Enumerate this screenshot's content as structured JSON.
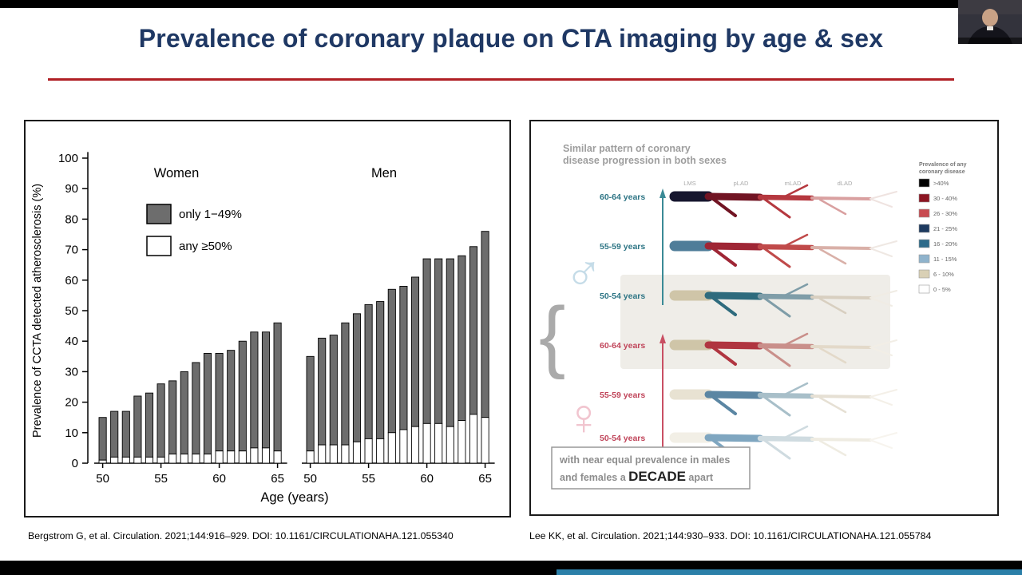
{
  "slide": {
    "title": "Prevalence of coronary plaque on CTA imaging by age & sex",
    "title_color": "#1F3864",
    "rule_color": "#B01F24",
    "footer_strip_color": "#2B7FA8"
  },
  "citations": {
    "left": "Bergstrom G, et al. Circulation. 2021;144:916–929. DOI: 10.1161/CIRCULATIONAHA.121.055340",
    "right": "Lee KK, et al. Circulation. 2021;144:930–933. DOI: 10.1161/CIRCULATIONAHA.121.055784"
  },
  "chart_data": [
    {
      "type": "bar",
      "stacked": true,
      "title": "",
      "xlabel": "Age (years)",
      "ylabel": "Prevalence of CCTA detected atherosclerosis (%)",
      "ylim": [
        0,
        100
      ],
      "yticks": [
        0,
        10,
        20,
        30,
        40,
        50,
        60,
        70,
        80,
        90,
        100
      ],
      "bar_fill": "#6d6d6d",
      "legend": [
        {
          "label": "only 1−49%",
          "fill": "#6d6d6d"
        },
        {
          "label": "any ≥50%",
          "fill": "#ffffff"
        }
      ],
      "groups": [
        {
          "label": "Women",
          "age_start": 50,
          "xticks": [
            50,
            55,
            60,
            65
          ],
          "total": [
            15,
            17,
            17,
            22,
            23,
            26,
            27,
            30,
            33,
            36,
            36,
            37,
            40,
            43,
            43,
            46
          ],
          "ge50": [
            1,
            2,
            2,
            2,
            2,
            2,
            3,
            3,
            3,
            3,
            4,
            4,
            4,
            5,
            5,
            4
          ]
        },
        {
          "label": "Men",
          "age_start": 50,
          "xticks": [
            50,
            55,
            60,
            65
          ],
          "total": [
            35,
            41,
            42,
            46,
            49,
            52,
            53,
            57,
            58,
            61,
            67,
            67,
            67,
            68,
            71,
            76
          ],
          "ge50": [
            4,
            6,
            6,
            6,
            7,
            8,
            8,
            10,
            11,
            12,
            13,
            13,
            12,
            14,
            16,
            15
          ]
        }
      ]
    },
    {
      "type": "diagram",
      "title_lines": [
        "Similar pattern of coronary",
        "disease progression in both sexes"
      ],
      "columns": [
        "LMS",
        "pLAD",
        "mLAD",
        "dLAD"
      ],
      "male_symbol": "♂",
      "female_symbol": "♀",
      "arrow_colors": {
        "male": "#3A8A96",
        "female": "#C94F63"
      },
      "rows": [
        {
          "group": "male",
          "age": "60-64 years",
          "label_color": "#2E7585",
          "colors": [
            "#16162E",
            "#711423",
            "#B5383F",
            "#D9A0A0",
            "#EFE3E0"
          ]
        },
        {
          "group": "male",
          "age": "55-59 years",
          "label_color": "#2E7585",
          "colors": [
            "#4F7D99",
            "#9F2635",
            "#C04A4A",
            "#D9B0A8",
            "#EFE8E3"
          ]
        },
        {
          "group": "male",
          "age": "50-54 years",
          "label_color": "#2E7585",
          "colors": [
            "#CFC5A8",
            "#2E6B7D",
            "#7F9DA8",
            "#D8CFC0",
            "#F0ECE4"
          ]
        },
        {
          "group": "female",
          "age": "60-64 years",
          "label_color": "#C0455A",
          "colors": [
            "#CFC5A8",
            "#B03540",
            "#C98F8A",
            "#E3D9C9",
            "#F2EEE6"
          ]
        },
        {
          "group": "female",
          "age": "55-59 years",
          "label_color": "#C0455A",
          "colors": [
            "#E8E2D2",
            "#5B86A3",
            "#A8BFC9",
            "#E6E0D4",
            "#F4F0E8"
          ]
        },
        {
          "group": "female",
          "age": "50-54 years",
          "label_color": "#C0455A",
          "colors": [
            "#F2EFE6",
            "#7FA6C0",
            "#CFDBE0",
            "#EFECE2",
            "#F7F4EE"
          ]
        }
      ],
      "legend": {
        "title_lines": [
          "Prevalence of any",
          "coronary disease"
        ],
        "bins": [
          {
            "label": ">40%",
            "color": "#000000"
          },
          {
            "label": "30 - 40%",
            "color": "#8C1522"
          },
          {
            "label": "26 - 30%",
            "color": "#C84A50"
          },
          {
            "label": "21 - 25%",
            "color": "#1D3A5F"
          },
          {
            "label": "16 - 20%",
            "color": "#2D6B8A"
          },
          {
            "label": "11 - 15%",
            "color": "#8FB3CC"
          },
          {
            "label": "6 - 10%",
            "color": "#D9D0B5"
          },
          {
            "label": "0 - 5%",
            "color": "#FFFFFF"
          }
        ]
      },
      "caption": {
        "line1": "with near equal prevalence in males",
        "line2_prefix": "and females a ",
        "line2_emph": "DECADE",
        "line2_suffix": " apart"
      }
    }
  ]
}
